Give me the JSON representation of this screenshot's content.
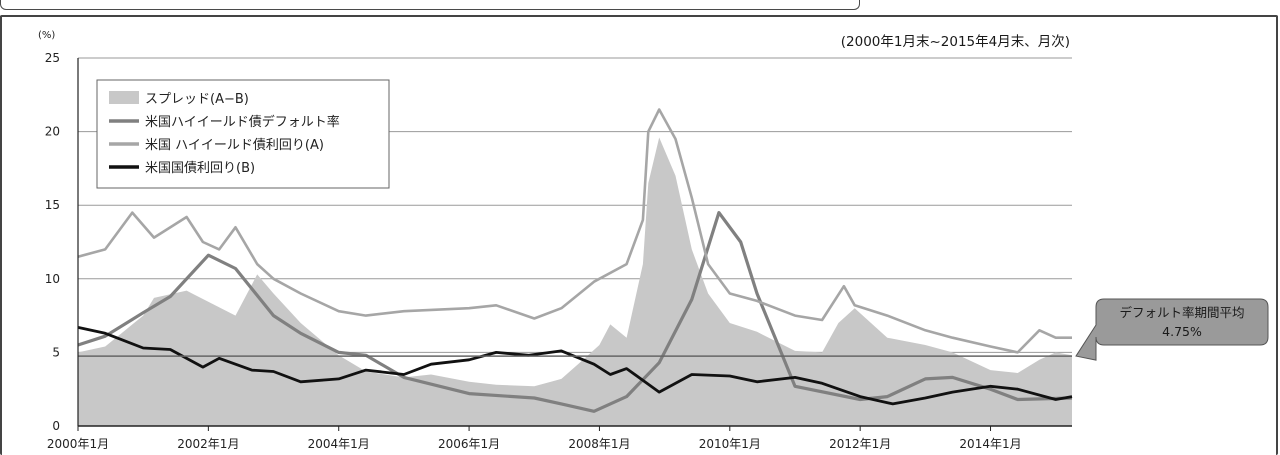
{
  "chart_data": {
    "type": "area",
    "unit_label": "(%)",
    "period_label": "(2000年1月末~2015年4月末、月次)",
    "y_ticks": [
      0,
      5,
      10,
      15,
      20,
      25
    ],
    "ylim": [
      0,
      25
    ],
    "x_ticks": [
      "2000年1月",
      "2002年1月",
      "2004年1月",
      "2006年1月",
      "2008年1月",
      "2010年1月",
      "2012年1月",
      "2014年1月"
    ],
    "xlim": [
      "2000-01",
      "2015-04"
    ],
    "grid": "horizontal",
    "legend_position": "top-left",
    "series": [
      {
        "name": "スプレッド(A−B)",
        "kind": "area",
        "color": "#c8c8c8",
        "x": [
          "2000-01",
          "2000-06",
          "2001-01",
          "2001-03",
          "2001-09",
          "2001-10",
          "2002-06",
          "2002-10",
          "2003-01",
          "2003-06",
          "2004-01",
          "2004-06",
          "2005-01",
          "2005-06",
          "2006-01",
          "2006-06",
          "2007-01",
          "2007-06",
          "2007-10",
          "2008-01",
          "2008-03",
          "2008-06",
          "2008-09",
          "2008-10",
          "2008-12",
          "2009-03",
          "2009-06",
          "2009-09",
          "2010-01",
          "2010-06",
          "2011-01",
          "2011-06",
          "2011-09",
          "2011-12",
          "2012-06",
          "2013-01",
          "2013-06",
          "2014-01",
          "2014-06",
          "2014-10",
          "2015-01",
          "2015-04"
        ],
        "values": [
          5.0,
          5.4,
          7.5,
          8.7,
          9.2,
          9.0,
          7.5,
          10.3,
          9.0,
          7.0,
          4.8,
          3.7,
          3.3,
          3.5,
          3.0,
          2.8,
          2.7,
          3.2,
          4.5,
          5.5,
          6.9,
          6.0,
          11.0,
          16.5,
          19.6,
          17.0,
          12.0,
          9.0,
          7.0,
          6.4,
          5.1,
          5.0,
          7.0,
          8.0,
          6.0,
          5.5,
          5.0,
          3.8,
          3.6,
          4.5,
          5.0,
          4.8
        ]
      },
      {
        "name": "米国ハイイールド債デフォルト率",
        "kind": "line",
        "color": "#808080",
        "x": [
          "2000-01",
          "2000-06",
          "2001-01",
          "2001-06",
          "2002-01",
          "2002-06",
          "2003-01",
          "2003-06",
          "2004-01",
          "2004-06",
          "2005-01",
          "2006-01",
          "2007-01",
          "2007-06",
          "2007-12",
          "2008-06",
          "2008-12",
          "2009-06",
          "2009-11",
          "2010-03",
          "2010-06",
          "2011-01",
          "2012-01",
          "2012-06",
          "2013-01",
          "2013-06",
          "2014-01",
          "2014-06",
          "2015-04"
        ],
        "values": [
          5.5,
          6.1,
          7.7,
          8.8,
          11.6,
          10.7,
          7.5,
          6.3,
          5.0,
          4.8,
          3.3,
          2.2,
          1.9,
          1.5,
          1.0,
          2.0,
          4.3,
          8.6,
          14.5,
          12.5,
          9.0,
          2.7,
          1.8,
          2.0,
          3.2,
          3.3,
          2.5,
          1.8,
          1.9
        ]
      },
      {
        "name": "米国 ハイイールド債利回り(A)",
        "kind": "line",
        "color": "#a6a6a6",
        "x": [
          "2000-01",
          "2000-06",
          "2000-11",
          "2001-03",
          "2001-09",
          "2001-12",
          "2002-03",
          "2002-06",
          "2002-10",
          "2003-01",
          "2003-06",
          "2004-01",
          "2004-06",
          "2005-01",
          "2006-01",
          "2006-06",
          "2007-01",
          "2007-06",
          "2007-12",
          "2008-06",
          "2008-09",
          "2008-10",
          "2008-12",
          "2009-03",
          "2009-06",
          "2009-09",
          "2010-01",
          "2010-06",
          "2011-01",
          "2011-06",
          "2011-10",
          "2011-12",
          "2012-06",
          "2013-01",
          "2013-06",
          "2014-01",
          "2014-06",
          "2014-10",
          "2015-01",
          "2015-04"
        ],
        "values": [
          11.5,
          12.0,
          14.5,
          12.8,
          14.2,
          12.5,
          12.0,
          13.5,
          11.0,
          10.0,
          9.0,
          7.8,
          7.5,
          7.8,
          8.0,
          8.2,
          7.3,
          8.0,
          9.8,
          11.0,
          14.0,
          20.0,
          21.5,
          19.5,
          15.5,
          11.0,
          9.0,
          8.5,
          7.5,
          7.2,
          9.5,
          8.2,
          7.5,
          6.5,
          6.0,
          5.4,
          5.0,
          6.5,
          6.0,
          6.0
        ]
      },
      {
        "name": "米国国債利回り(B)",
        "kind": "line",
        "color": "#111111",
        "x": [
          "2000-01",
          "2000-06",
          "2001-01",
          "2001-06",
          "2001-12",
          "2002-03",
          "2002-09",
          "2003-01",
          "2003-06",
          "2004-01",
          "2004-06",
          "2005-01",
          "2005-06",
          "2006-01",
          "2006-06",
          "2006-12",
          "2007-06",
          "2007-12",
          "2008-03",
          "2008-06",
          "2008-12",
          "2009-06",
          "2010-01",
          "2010-06",
          "2011-01",
          "2011-06",
          "2012-01",
          "2012-07",
          "2013-01",
          "2013-06",
          "2014-01",
          "2014-06",
          "2015-01",
          "2015-04"
        ],
        "values": [
          6.7,
          6.3,
          5.3,
          5.2,
          4.0,
          4.6,
          3.8,
          3.7,
          3.0,
          3.2,
          3.8,
          3.5,
          4.2,
          4.5,
          5.0,
          4.8,
          5.1,
          4.2,
          3.5,
          3.9,
          2.3,
          3.5,
          3.4,
          3.0,
          3.3,
          2.9,
          2.0,
          1.5,
          1.9,
          2.3,
          2.7,
          2.5,
          1.8,
          2.0
        ]
      }
    ],
    "annotation": {
      "text_line1": "デフォルト率期間平均",
      "text_line2": "4.75%",
      "value": 4.75
    }
  }
}
